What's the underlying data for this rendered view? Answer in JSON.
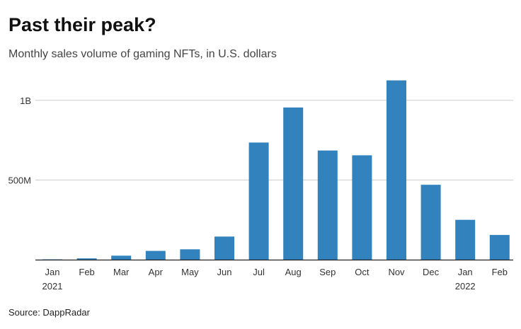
{
  "chart_data": {
    "type": "bar",
    "title": "Past their peak?",
    "subtitle": "Monthly sales volume of gaming NFTs, in U.S. dollars",
    "source": "Source: DappRadar",
    "categories": [
      "Jan",
      "Feb",
      "Mar",
      "Apr",
      "May",
      "Jun",
      "Jul",
      "Aug",
      "Sep",
      "Oct",
      "Nov",
      "Dec",
      "Jan",
      "Feb"
    ],
    "category_sublabels": [
      "2021",
      "",
      "",
      "",
      "",
      "",
      "",
      "",
      "",
      "",
      "",
      "",
      "2022",
      ""
    ],
    "values": [
      2000000,
      8000000,
      25000000,
      55000000,
      65000000,
      145000000,
      735000000,
      955000000,
      685000000,
      655000000,
      1125000000,
      470000000,
      250000000,
      155000000
    ],
    "yticks": [
      {
        "value": 500000000,
        "label": "500M"
      },
      {
        "value": 1000000000,
        "label": "1B"
      }
    ],
    "ylim": [
      0,
      1150000000
    ],
    "xlabel": "",
    "ylabel": "",
    "grid": true,
    "bar_color": "#3182bd",
    "grid_color": "#cccccc",
    "axis_color": "#222222"
  }
}
